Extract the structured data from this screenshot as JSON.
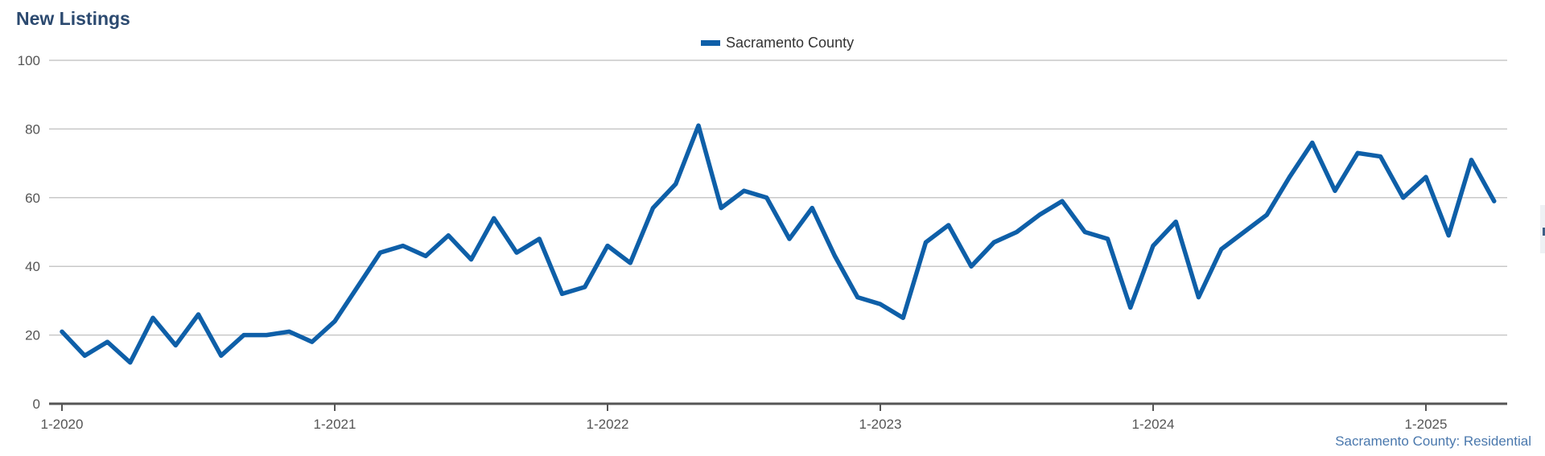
{
  "chart_data": {
    "type": "line",
    "title": "New Listings",
    "xlabel": "",
    "ylabel": "",
    "ylim": [
      0,
      100
    ],
    "yticks": [
      0,
      20,
      40,
      60,
      80,
      100
    ],
    "x_tick_labels": [
      "1-2020",
      "1-2021",
      "1-2022",
      "1-2023",
      "1-2024",
      "1-2025"
    ],
    "x": [
      "1-2020",
      "2-2020",
      "3-2020",
      "4-2020",
      "5-2020",
      "6-2020",
      "7-2020",
      "8-2020",
      "9-2020",
      "10-2020",
      "11-2020",
      "12-2020",
      "1-2021",
      "2-2021",
      "3-2021",
      "4-2021",
      "5-2021",
      "6-2021",
      "7-2021",
      "8-2021",
      "9-2021",
      "10-2021",
      "11-2021",
      "12-2021",
      "1-2022",
      "2-2022",
      "3-2022",
      "4-2022",
      "5-2022",
      "6-2022",
      "7-2022",
      "8-2022",
      "9-2022",
      "10-2022",
      "11-2022",
      "12-2022",
      "1-2023",
      "2-2023",
      "3-2023",
      "4-2023",
      "5-2023",
      "6-2023",
      "7-2023",
      "8-2023",
      "9-2023",
      "10-2023",
      "11-2023",
      "12-2023",
      "1-2024",
      "2-2024",
      "3-2024",
      "4-2024",
      "5-2024",
      "6-2024",
      "7-2024",
      "8-2024",
      "9-2024",
      "10-2024",
      "11-2024",
      "12-2024",
      "1-2025",
      "2-2025",
      "3-2025",
      "4-2025"
    ],
    "series": [
      {
        "name": "Sacramento County",
        "color": "#0e5fa8",
        "values": [
          21,
          14,
          18,
          12,
          25,
          17,
          26,
          14,
          20,
          20,
          21,
          18,
          24,
          34,
          44,
          46,
          43,
          49,
          42,
          54,
          44,
          48,
          32,
          34,
          46,
          41,
          57,
          64,
          81,
          57,
          62,
          60,
          48,
          57,
          43,
          31,
          29,
          25,
          47,
          52,
          40,
          47,
          50,
          55,
          59,
          50,
          48,
          28,
          46,
          53,
          31,
          45,
          50,
          55,
          66,
          76,
          62,
          73,
          72,
          60,
          66,
          49,
          71,
          59
        ]
      }
    ],
    "grid": true,
    "legend_position": "top-center",
    "credit": "Sacramento County: Residential"
  }
}
